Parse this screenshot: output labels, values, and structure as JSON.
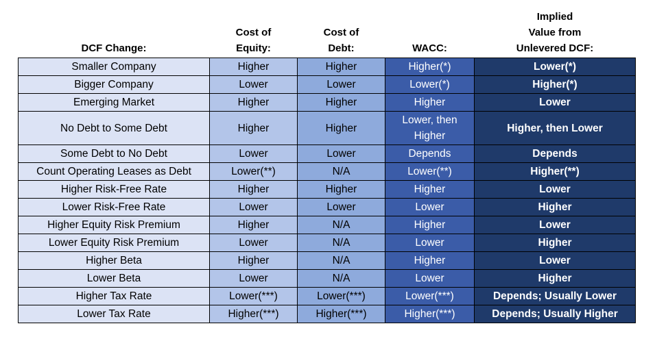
{
  "headers": [
    "DCF Change:",
    "Cost of\nEquity:",
    "Cost of\nDebt:",
    "WACC:",
    "Implied\nValue from\nUnlevered DCF:"
  ],
  "rows": [
    [
      "Smaller Company",
      "Higher",
      "Higher",
      "Higher(*)",
      "Lower(*)"
    ],
    [
      "Bigger Company",
      "Lower",
      "Lower",
      "Lower(*)",
      "Higher(*)"
    ],
    [
      "Emerging Market",
      "Higher",
      "Higher",
      "Higher",
      "Lower"
    ],
    [
      "No Debt to Some Debt",
      "Higher",
      "Higher",
      "Lower, then Higher",
      "Higher, then Lower"
    ],
    [
      "Some Debt to No Debt",
      "Lower",
      "Lower",
      "Depends",
      "Depends"
    ],
    [
      "Count Operating Leases as Debt",
      "Lower(**)",
      "N/A",
      "Lower(**)",
      "Higher(**)"
    ],
    [
      "Higher Risk-Free Rate",
      "Higher",
      "Higher",
      "Higher",
      "Lower"
    ],
    [
      "Lower Risk-Free Rate",
      "Lower",
      "Lower",
      "Lower",
      "Higher"
    ],
    [
      "Higher Equity Risk Premium",
      "Higher",
      "N/A",
      "Higher",
      "Lower"
    ],
    [
      "Lower Equity Risk Premium",
      "Lower",
      "N/A",
      "Lower",
      "Higher"
    ],
    [
      "Higher Beta",
      "Higher",
      "N/A",
      "Higher",
      "Lower"
    ],
    [
      "Lower Beta",
      "Lower",
      "N/A",
      "Lower",
      "Higher"
    ],
    [
      "Higher Tax Rate",
      "Lower(***)",
      "Lower(***)",
      "Lower(***)",
      "Depends; Usually Lower"
    ],
    [
      "Lower Tax Rate",
      "Higher(***)",
      "Higher(***)",
      "Higher(***)",
      "Depends; Usually Higher"
    ]
  ],
  "column_colors": [
    "#dce3f5",
    "#b3c5e9",
    "#8eaadc",
    "#3b5ca8",
    "#1f3a6a"
  ]
}
